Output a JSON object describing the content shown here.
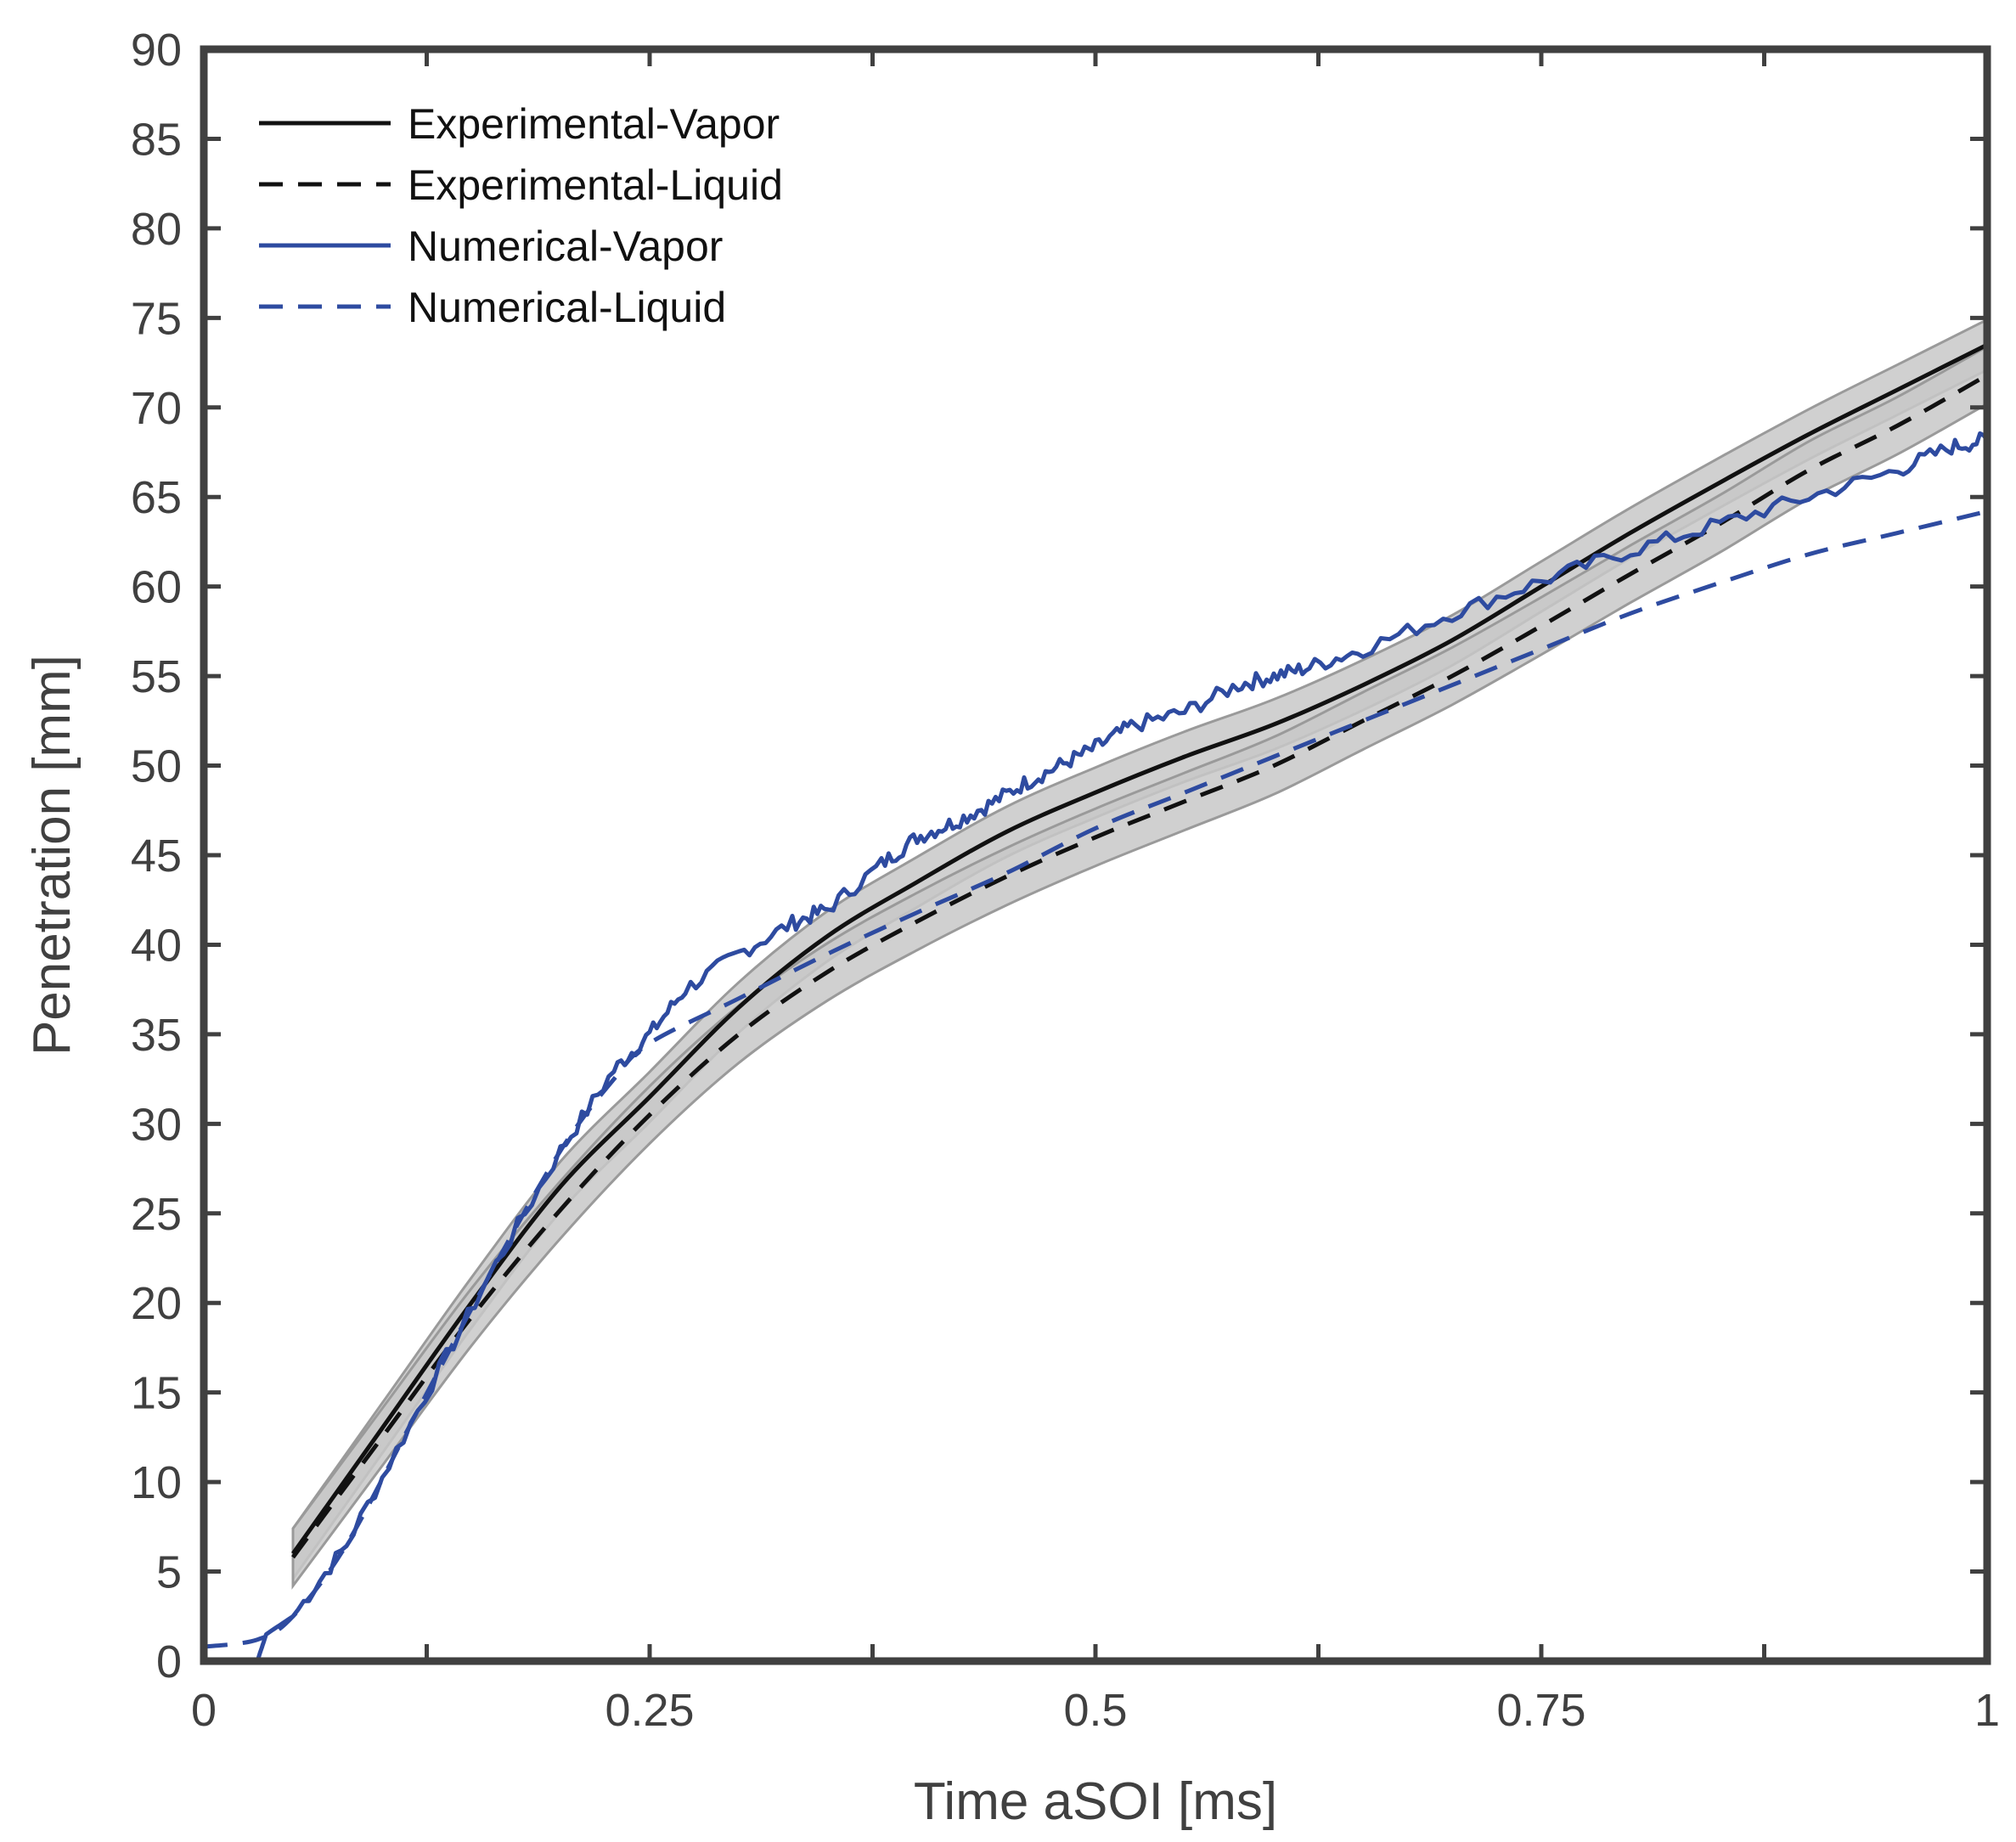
{
  "chart_data": {
    "type": "line",
    "title": "",
    "xlabel": "Time aSOI [ms]",
    "ylabel": "Penetration [mm]",
    "xlim": [
      0,
      1
    ],
    "ylim": [
      0,
      90
    ],
    "x_ticks": [
      0,
      0.25,
      0.5,
      0.75,
      1
    ],
    "x_tick_labels": [
      "0",
      "0.25",
      "0.5",
      "0.75",
      "1"
    ],
    "y_ticks": [
      0,
      5,
      10,
      15,
      20,
      25,
      30,
      35,
      40,
      45,
      50,
      55,
      60,
      65,
      70,
      75,
      80,
      85,
      90
    ],
    "y_tick_labels": [
      "0",
      "5",
      "10",
      "15",
      "20",
      "25",
      "30",
      "35",
      "40",
      "45",
      "50",
      "55",
      "60",
      "65",
      "70",
      "75",
      "80",
      "85",
      "90"
    ],
    "grid": false,
    "legend_position": "top-left",
    "colors": {
      "experimental": "#111111",
      "numerical": "#2e4ba0",
      "band_fill": "#c8c8c8",
      "band_edge": "#9a9a9a",
      "axis": "#404040"
    },
    "series": [
      {
        "name": "Experimental-Vapor",
        "style": "solid",
        "color": "#111111",
        "x": [
          0.05,
          0.1,
          0.15,
          0.2,
          0.25,
          0.3,
          0.35,
          0.4,
          0.45,
          0.5,
          0.55,
          0.6,
          0.65,
          0.7,
          0.75,
          0.8,
          0.85,
          0.9,
          0.95,
          1.0
        ],
        "y": [
          6,
          13,
          20,
          26.5,
          31.5,
          36.5,
          40.5,
          43.5,
          46.3,
          48.5,
          50.5,
          52.3,
          54.5,
          57,
          60,
          63,
          65.8,
          68.5,
          71,
          73.5
        ],
        "band": 1.4
      },
      {
        "name": "Experimental-Liquid",
        "style": "dashed",
        "color": "#111111",
        "x": [
          0.05,
          0.1,
          0.15,
          0.2,
          0.25,
          0.3,
          0.35,
          0.4,
          0.45,
          0.5,
          0.55,
          0.6,
          0.65,
          0.7,
          0.75,
          0.8,
          0.85,
          0.9,
          0.95,
          1.0
        ],
        "y": [
          5.8,
          12.5,
          19.2,
          25.2,
          30.5,
          35,
          38.5,
          41.3,
          43.8,
          46,
          48,
          50,
          52.5,
          55,
          57.8,
          60.7,
          63.5,
          66.5,
          69,
          71.8
        ],
        "band": 1.6
      },
      {
        "name": "Numerical-Vapor",
        "style": "solid",
        "color": "#2e4ba0",
        "x": [
          0,
          0.03,
          0.035,
          0.05,
          0.08,
          0.12,
          0.16,
          0.2,
          0.23,
          0.25,
          0.27,
          0.3,
          0.33,
          0.35,
          0.38,
          0.4,
          0.42,
          0.44,
          0.46,
          0.48,
          0.5,
          0.52,
          0.55,
          0.58,
          0.6,
          0.62,
          0.65,
          0.7,
          0.75,
          0.8,
          0.85,
          0.9,
          0.95,
          0.98,
          1.0
        ],
        "y": [
          0,
          0,
          1.5,
          2.5,
          6.5,
          14,
          21.5,
          28.5,
          33,
          35,
          37.5,
          39.5,
          41.2,
          42,
          44.5,
          46,
          46.8,
          47.8,
          49,
          50,
          51,
          52.2,
          53,
          54.5,
          55,
          55.5,
          56.5,
          58.5,
          60.3,
          62,
          63.5,
          65,
          66.5,
          67.8,
          68.2
        ]
      },
      {
        "name": "Numerical-Liquid",
        "style": "dashed",
        "color": "#2e4ba0",
        "x": [
          0,
          0.03,
          0.05,
          0.08,
          0.12,
          0.16,
          0.2,
          0.23,
          0.25,
          0.3,
          0.35,
          0.4,
          0.45,
          0.5,
          0.55,
          0.6,
          0.65,
          0.7,
          0.75,
          0.8,
          0.85,
          0.9,
          0.95,
          1.0
        ],
        "y": [
          0.8,
          1.2,
          2.5,
          6.5,
          14,
          21.5,
          28.5,
          32.5,
          34.5,
          37,
          39.5,
          41.8,
          44,
          46.5,
          48.5,
          50.5,
          52.5,
          54.5,
          56.5,
          58.5,
          60.2,
          61.8,
          63,
          64.2
        ]
      }
    ]
  }
}
